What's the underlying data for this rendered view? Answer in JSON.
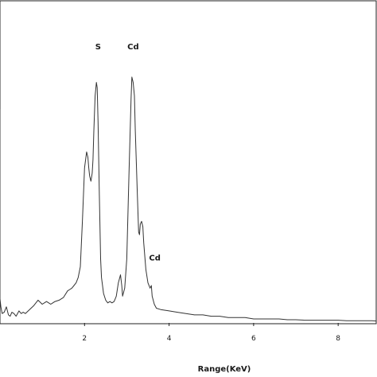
{
  "chart_data": {
    "type": "line",
    "title": "",
    "xlabel": "Range(KeV)",
    "ylabel": "",
    "xlim": [
      0,
      8.9
    ],
    "ylim": [
      0,
      100
    ],
    "grid": false,
    "legend": "none",
    "line_color": "#333333",
    "x_ticks": [
      {
        "value": 2,
        "label": "2"
      },
      {
        "value": 4,
        "label": "4"
      },
      {
        "value": 6,
        "label": "6"
      },
      {
        "value": 8,
        "label": "8"
      }
    ],
    "annotations": [
      {
        "text": "S",
        "x": 2.32,
        "y": 100
      },
      {
        "text": "Cd",
        "x": 3.15,
        "y": 100
      },
      {
        "text": "Cd",
        "x": 3.55,
        "y": 21
      }
    ],
    "series": [
      {
        "x": [
          0.0,
          0.0,
          0.02,
          0.05,
          0.1,
          0.15,
          0.2,
          0.24,
          0.28,
          0.33,
          0.38,
          0.45,
          0.5,
          0.55,
          0.6,
          0.7,
          0.8,
          0.9,
          1.0,
          1.05,
          1.1,
          1.2,
          1.3,
          1.4,
          1.5,
          1.6,
          1.65,
          1.7,
          1.75,
          1.8,
          1.85,
          1.9,
          1.95,
          2.0,
          2.05,
          2.08,
          2.1,
          2.12,
          2.15,
          2.18,
          2.2,
          2.22,
          2.25,
          2.28,
          2.3,
          2.32,
          2.35,
          2.38,
          2.4,
          2.45,
          2.5,
          2.55,
          2.6,
          2.65,
          2.7,
          2.75,
          2.8,
          2.85,
          2.88,
          2.9,
          2.95,
          3.0,
          3.05,
          3.1,
          3.12,
          3.15,
          3.18,
          3.2,
          3.25,
          3.28,
          3.3,
          3.32,
          3.35,
          3.38,
          3.4,
          3.45,
          3.5,
          3.55,
          3.58,
          3.6,
          3.65,
          3.7,
          3.8,
          4.0,
          4.2,
          4.4,
          4.6,
          4.8,
          5.0,
          5.2,
          5.4,
          5.6,
          5.8,
          6.0,
          6.2,
          6.4,
          6.6,
          6.8,
          7.0,
          7.2,
          7.4,
          7.6,
          7.8,
          8.0,
          8.2,
          8.4,
          8.6,
          8.8,
          8.9
        ],
        "y": [
          80,
          9,
          6,
          3.5,
          4,
          6,
          3,
          2.5,
          4,
          3.5,
          2.5,
          4.5,
          3.5,
          4,
          3.5,
          5,
          6.5,
          8.5,
          7,
          7.5,
          8,
          7,
          8,
          8.5,
          9.5,
          12,
          12.5,
          13,
          14,
          15,
          17,
          21,
          38,
          58,
          64,
          62,
          58,
          55,
          53,
          56,
          61,
          72,
          85,
          90,
          88,
          75,
          48,
          24,
          17,
          11,
          8.5,
          7.5,
          8,
          7.5,
          8,
          10,
          15,
          18,
          14,
          10,
          13,
          24,
          55,
          84,
          92,
          90,
          85,
          72,
          48,
          34,
          33,
          37,
          38,
          36,
          30,
          20,
          15,
          13,
          14,
          10,
          7,
          5.5,
          5,
          4.5,
          4,
          3.5,
          3,
          3,
          2.5,
          2.5,
          2,
          2,
          2,
          1.5,
          1.5,
          1.5,
          1.5,
          1.2,
          1.2,
          1,
          1,
          1,
          1,
          1,
          0.8,
          0.8,
          0.8,
          0.8,
          0.7
        ]
      }
    ]
  }
}
